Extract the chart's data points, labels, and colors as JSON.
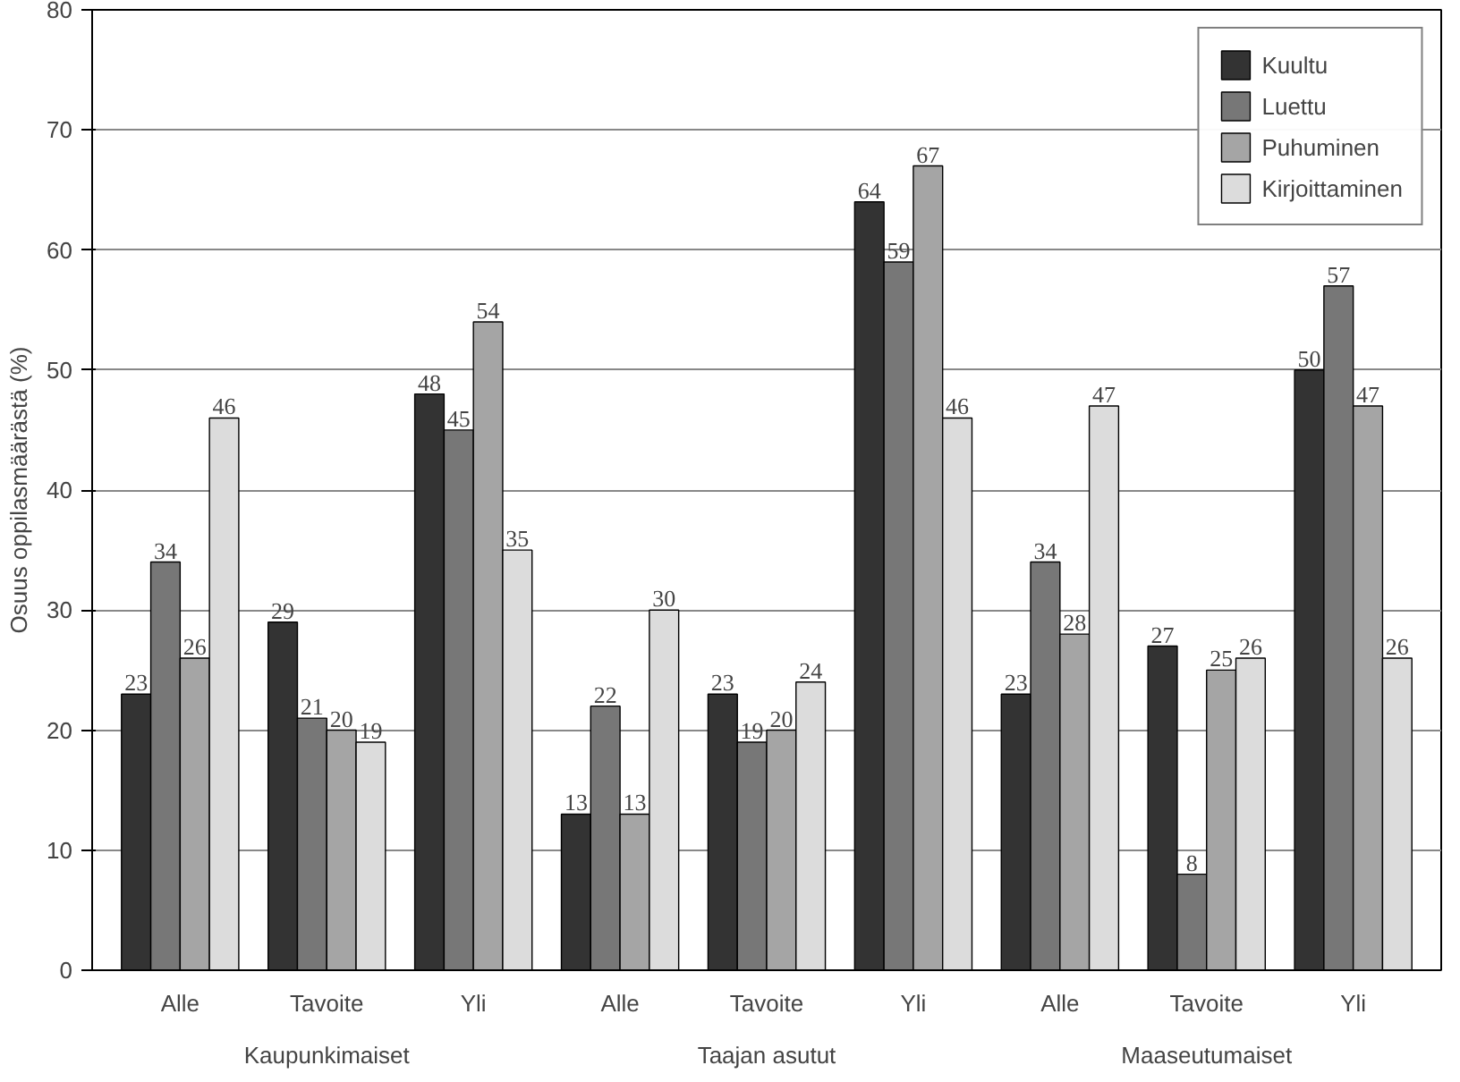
{
  "chart_data": {
    "type": "bar",
    "ylabel": "Osuus oppilasmäärästä (%)",
    "categories": [
      "Alle",
      "Tavoite",
      "Yli",
      "Alle",
      "Tavoite",
      "Yli",
      "Alle",
      "Tavoite",
      "Yli"
    ],
    "annotations": [
      "Kaupunkimaiset",
      "Taajan asutut",
      "Maaseutumaiset"
    ],
    "series": [
      {
        "name": "Kuultu",
        "color": "#333333",
        "values": [
          23,
          29,
          48,
          13,
          23,
          64,
          23,
          27,
          50
        ]
      },
      {
        "name": "Luettu",
        "color": "#777777",
        "values": [
          34,
          21,
          45,
          22,
          19,
          59,
          34,
          8,
          57
        ]
      },
      {
        "name": "Puhuminen",
        "color": "#a5a5a5",
        "values": [
          26,
          20,
          54,
          13,
          20,
          67,
          28,
          25,
          47
        ]
      },
      {
        "name": "Kirjoittaminen",
        "color": "#dcdcdc",
        "values": [
          46,
          19,
          35,
          30,
          24,
          46,
          47,
          26,
          26
        ]
      }
    ],
    "ylim": [
      0,
      80
    ],
    "yticks": [
      0,
      10,
      20,
      30,
      40,
      50,
      60,
      70,
      80
    ],
    "grid": "y",
    "legend": "top right",
    "data_labels": true
  }
}
